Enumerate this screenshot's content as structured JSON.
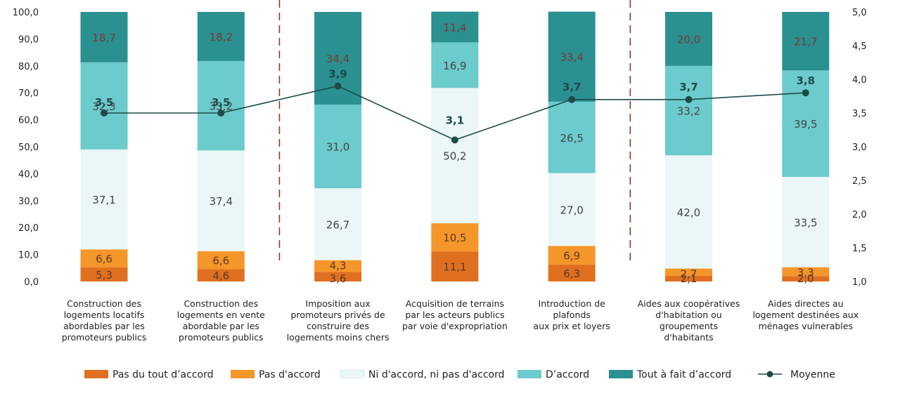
{
  "chart_data": {
    "type": "bar",
    "stacked": true,
    "categories": [
      "Construction des logements locatifs abordables par les promoteurs publics",
      "Construction des logements en vente abordable par les promoteurs publics",
      "Imposition aux promoteurs privés de construire des logements moins chers",
      "Acquisition de terrains par les acteurs publics par voie d'expropriation",
      "Introduction de plafonds aux prix et loyers",
      "Aides aux coopératives d'habitation ou groupements d'habitants",
      "Aides directes au logement destinées aux ménages vulnerables"
    ],
    "category_lines": [
      [
        "Construction des",
        "logements locatifs",
        "abordables par les",
        "promoteurs publics"
      ],
      [
        "Construction des",
        "logements en vente",
        "abordable par les",
        "promoteurs publics"
      ],
      [
        "Imposition aux",
        "promoteurs privés de",
        "construire des",
        "logements moins chers"
      ],
      [
        "Acquisition de terrains",
        "par les acteurs publics",
        "par voie d'expropriation"
      ],
      [
        "Introduction de",
        "plafonds",
        "aux prix et loyers"
      ],
      [
        "Aides aux coopératives",
        "d'habitation ou",
        "groupements",
        "d'habitants"
      ],
      [
        "Aides directes au",
        "logement destinées aux",
        "ménages vulnerables"
      ]
    ],
    "series": [
      {
        "name": "Pas du tout d’accord",
        "color": "#e07020",
        "label_color": "#5a3a2a",
        "values": [
          5.3,
          4.6,
          3.6,
          11.1,
          6.3,
          2.1,
          2.0
        ]
      },
      {
        "name": "Pas d'accord",
        "color": "#f5962a",
        "label_color": "#5a3a2a",
        "values": [
          6.6,
          6.6,
          4.3,
          10.5,
          6.9,
          2.7,
          3.3
        ]
      },
      {
        "name": "Ni d'accord, ni pas d'accord",
        "color": "#eaf6f7",
        "label_color": "#444444",
        "values": [
          37.1,
          37.4,
          26.7,
          50.2,
          27.0,
          42.0,
          33.5
        ]
      },
      {
        "name": "D’accord",
        "color": "#6ccbcc",
        "label_color": "#444444",
        "values": [
          32.3,
          33.2,
          31.0,
          16.9,
          26.5,
          33.2,
          39.5
        ]
      },
      {
        "name": "Tout à fait d’accord",
        "color": "#2a9090",
        "label_color": "#7a3a30",
        "values": [
          18.7,
          18.2,
          34.4,
          11.4,
          33.4,
          20.0,
          21.7
        ]
      }
    ],
    "line_series": {
      "name": "Moyenne",
      "color": "#1f4a4a",
      "axis": "right",
      "values": [
        3.5,
        3.5,
        3.9,
        3.1,
        3.7,
        3.7,
        3.8
      ],
      "labels": [
        "3,5",
        "3,5",
        "3,9",
        "3,1",
        "3,7",
        "3,7",
        "3,8"
      ]
    },
    "left_axis": {
      "ylim": [
        0,
        100
      ],
      "ticks": [
        "0,0",
        "10,0",
        "20,0",
        "30,0",
        "40,0",
        "50,0",
        "60,0",
        "70,0",
        "80,0",
        "90,0",
        "100,0"
      ]
    },
    "right_axis": {
      "ylim": [
        1.0,
        5.0
      ],
      "ticks": [
        "1,0",
        "1,5",
        "2,0",
        "2,5",
        "3,0",
        "3,5",
        "4,0",
        "4,5",
        "5,0"
      ]
    },
    "separators_after_category": [
      2,
      5
    ],
    "separator_color": "#8a3a2a",
    "legend_position": "bottom"
  }
}
